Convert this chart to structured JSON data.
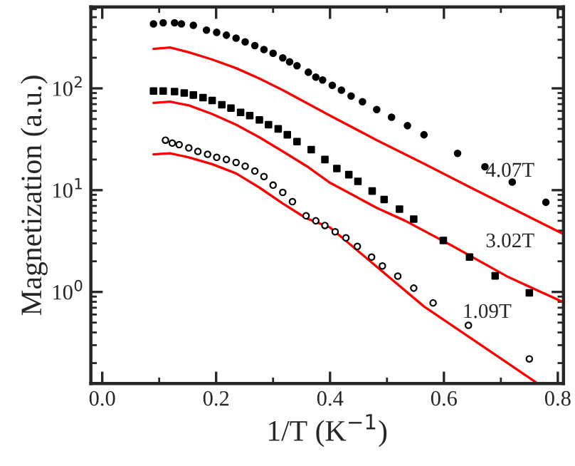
{
  "chart_data": {
    "type": "scatter",
    "xlabel": "1/T (K$^{−1}$)",
    "ylabel": "Magnetization (a.u.)",
    "log": "y",
    "xlim": [
      -0.02,
      0.81
    ],
    "ylim": [
      0.126,
      630
    ],
    "xticks": [
      {
        "value": 0.0,
        "label": "0.0"
      },
      0.2,
      0.4,
      0.6,
      0.8
    ],
    "yticks": [
      {
        "value": 1,
        "label": "10$^{0}$"
      },
      {
        "value": 10,
        "label": "10$^{1}$"
      },
      {
        "value": 100,
        "label": "10$^{2}$"
      }
    ],
    "grid": false,
    "legend": false,
    "series": [
      {
        "marker": "circle",
        "color": "#000000",
        "x": [
          0.09,
          0.107,
          0.127,
          0.139,
          0.16,
          0.183,
          0.201,
          0.218,
          0.235,
          0.251,
          0.268,
          0.284,
          0.3,
          0.317,
          0.329,
          0.342,
          0.362,
          0.375,
          0.387,
          0.404,
          0.42,
          0.437,
          0.457,
          0.482,
          0.508,
          0.536,
          0.565,
          0.624,
          0.672,
          0.72,
          0.779
        ],
        "values": [
          430,
          440,
          440,
          430,
          417,
          374,
          355,
          333,
          312,
          286,
          263,
          241,
          221,
          199,
          182,
          167,
          144,
          129,
          121,
          107,
          96,
          84,
          74,
          62,
          52,
          43,
          35,
          23,
          17,
          12,
          7.6
        ]
      },
      {
        "type": "line",
        "name": "4.07T",
        "line_style": "solid",
        "color": "#ff0000",
        "x": [
          0.09,
          0.119,
          0.152,
          0.193,
          0.235,
          0.276,
          0.317,
          0.4,
          0.482,
          0.565,
          0.647,
          0.73,
          0.81
        ],
        "values": [
          244,
          252,
          226,
          192,
          158,
          125,
          96,
          54,
          31,
          18.2,
          10.6,
          6.2,
          3.7
        ]
      },
      {
        "marker": "square",
        "color": "#000000",
        "x": [
          0.09,
          0.107,
          0.127,
          0.144,
          0.16,
          0.177,
          0.193,
          0.21,
          0.226,
          0.243,
          0.259,
          0.276,
          0.292,
          0.309,
          0.325,
          0.342,
          0.367,
          0.391,
          0.412,
          0.433,
          0.449,
          0.474,
          0.495,
          0.522,
          0.547,
          0.599,
          0.645,
          0.69,
          0.75
        ],
        "values": [
          94,
          94,
          93,
          90,
          86,
          81,
          76,
          69,
          64,
          58,
          54,
          49,
          44,
          40,
          35,
          30,
          25,
          20,
          16.3,
          14.2,
          12.2,
          9.8,
          8.1,
          6.5,
          5.2,
          3.2,
          2.2,
          1.44,
          0.98
        ]
      },
      {
        "type": "line",
        "name": "3.02T",
        "line_style": "solid",
        "color": "#ff0000",
        "x": [
          0.09,
          0.119,
          0.152,
          0.193,
          0.235,
          0.276,
          0.317,
          0.359,
          0.4,
          0.441,
          0.482,
          0.532,
          0.614,
          0.713,
          0.81
        ],
        "values": [
          72,
          74,
          68,
          56,
          44,
          33,
          24,
          17.2,
          11.8,
          8.9,
          6.7,
          5.0,
          2.85,
          1.4,
          0.79
        ]
      },
      {
        "marker": "circle",
        "color": "#ffffff",
        "x": [
          0.111,
          0.123,
          0.135,
          0.152,
          0.168,
          0.185,
          0.201,
          0.218,
          0.235,
          0.251,
          0.268,
          0.284,
          0.3,
          0.317,
          0.334,
          0.358,
          0.375,
          0.391,
          0.409,
          0.428,
          0.448,
          0.473,
          0.492,
          0.519,
          0.547,
          0.581,
          0.643,
          0.75
        ],
        "values": [
          31,
          29,
          28,
          26,
          24,
          22.5,
          21,
          20,
          18.7,
          17.2,
          15.4,
          13.6,
          11.2,
          9.5,
          7.7,
          5.6,
          5.0,
          4.5,
          3.9,
          3.4,
          2.8,
          2.2,
          1.8,
          1.43,
          1.09,
          0.78,
          0.47,
          0.22
        ]
      },
      {
        "type": "line",
        "name": "1.09T",
        "line_style": "solid",
        "color": "#ff0000",
        "x": [
          0.09,
          0.119,
          0.152,
          0.193,
          0.235,
          0.276,
          0.317,
          0.358,
          0.4,
          0.565,
          0.763
        ],
        "values": [
          22.5,
          23,
          21,
          18,
          14.6,
          10.6,
          7.4,
          5.3,
          4.3,
          0.72,
          0.128
        ]
      }
    ]
  }
}
